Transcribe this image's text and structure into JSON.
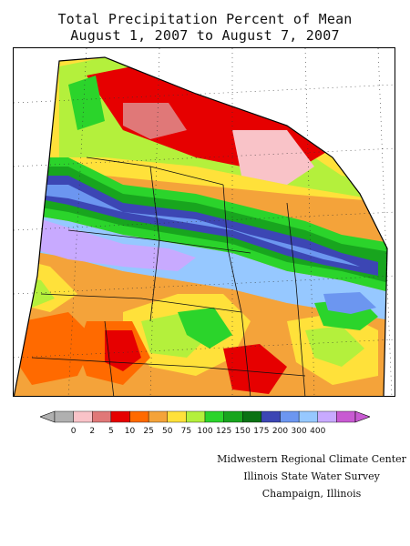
{
  "title_line1": "Total Precipitation Percent of Mean",
  "title_line2": "August 1, 2007 to August 7, 2007",
  "legend": {
    "ticks": [
      "0",
      "2",
      "5",
      "10",
      "25",
      "50",
      "75",
      "100",
      "125",
      "150",
      "175",
      "200",
      "300",
      "400"
    ],
    "colors": [
      "#b0b0b0",
      "#f9c3c8",
      "#e07878",
      "#e60000",
      "#ff6a00",
      "#f4a33a",
      "#ffe13a",
      "#b4f03c",
      "#2bd42b",
      "#18a51e",
      "#0a7214",
      "#3c46b4",
      "#6c96f0",
      "#96c8ff",
      "#c8aaff",
      "#c85ad2"
    ],
    "underflow_color": "#b0b0b0",
    "overflow_color": "#c85ad2"
  },
  "credits": {
    "line1": "Midwestern Regional Climate Center",
    "line2": "Illinois State Water Survey",
    "line3": "Champaign, Illinois"
  }
}
